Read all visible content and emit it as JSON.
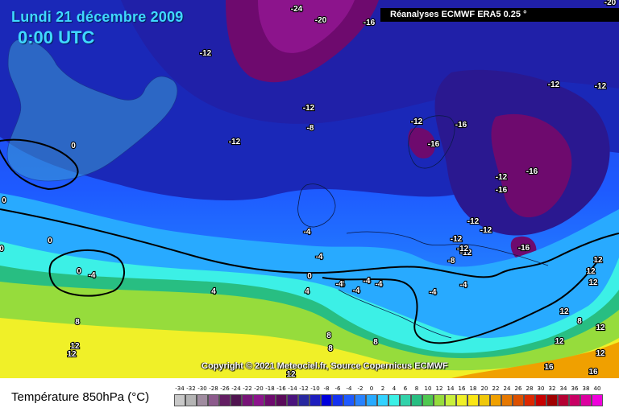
{
  "header": {
    "date": "Lundi 21 décembre 2009",
    "time": "0:00 UTC",
    "source": "Réanalyses ECMWF ERA5 0.25 °"
  },
  "copyright": "Copyright © 2021 Meteociel.fr, Source Copernicus ECMWF",
  "legend": {
    "title": "Température 850hPa (°C)",
    "ticks": [
      "-34",
      "-32",
      "-30",
      "-28",
      "-26",
      "-24",
      "-22",
      "-20",
      "-18",
      "-16",
      "-14",
      "-12",
      "-10",
      "-8",
      "-6",
      "-4",
      "-2",
      "0",
      "2",
      "4",
      "6",
      "8",
      "10",
      "12",
      "14",
      "16",
      "18",
      "20",
      "22",
      "24",
      "26",
      "28",
      "30",
      "32",
      "34",
      "36",
      "38",
      "40"
    ],
    "colors": [
      "#c8c8c8",
      "#b4b4b4",
      "#a08ca0",
      "#8c5a8c",
      "#641e64",
      "#501450",
      "#781478",
      "#8c148c",
      "#6e0a6e",
      "#5a0a5a",
      "#4b147d",
      "#2828a0",
      "#1e1ebe",
      "#0000dc",
      "#1432f0",
      "#1e5aff",
      "#2882ff",
      "#28aaff",
      "#32d2ff",
      "#3cf0e6",
      "#32d2aa",
      "#28be82",
      "#50c850",
      "#96dc3c",
      "#c8f03c",
      "#f0f028",
      "#fae614",
      "#f0c80a",
      "#f0a000",
      "#e67800",
      "#dc5000",
      "#dc2800",
      "#c80000",
      "#a00000",
      "#b40032",
      "#c80064",
      "#dc00a0",
      "#f000dc"
    ]
  },
  "contour_labels": [
    {
      "id": "l1",
      "text": "-24"
    },
    {
      "id": "l2",
      "text": "-20"
    },
    {
      "id": "l3",
      "text": "-16"
    },
    {
      "id": "l4",
      "text": "-20"
    },
    {
      "id": "l5",
      "text": "-12"
    },
    {
      "id": "l6",
      "text": "-12"
    },
    {
      "id": "l7",
      "text": "-8"
    },
    {
      "id": "l8",
      "text": "-12"
    },
    {
      "id": "l9",
      "text": "0"
    },
    {
      "id": "l10",
      "text": "-12"
    },
    {
      "id": "l11",
      "text": "-16"
    },
    {
      "id": "l12",
      "text": "-16"
    },
    {
      "id": "l13",
      "text": "-12"
    },
    {
      "id": "l14",
      "text": "-12"
    },
    {
      "id": "l15",
      "text": "-16"
    },
    {
      "id": "l16",
      "text": "-12"
    },
    {
      "id": "l17",
      "text": "-16"
    },
    {
      "id": "l18",
      "text": "-12"
    },
    {
      "id": "l19",
      "text": "-12"
    },
    {
      "id": "l20",
      "text": "-16"
    },
    {
      "id": "l21",
      "text": "-4"
    },
    {
      "id": "l22",
      "text": "-4"
    },
    {
      "id": "l23",
      "text": "-12"
    },
    {
      "id": "l24",
      "text": "-8"
    },
    {
      "id": "l25",
      "text": "0"
    },
    {
      "id": "l26",
      "text": "-4"
    },
    {
      "id": "l27",
      "text": "0"
    },
    {
      "id": "l28",
      "text": "-4"
    },
    {
      "id": "l29",
      "text": "-4"
    },
    {
      "id": "l30",
      "text": "-4"
    },
    {
      "id": "l31",
      "text": "-4"
    },
    {
      "id": "l32",
      "text": "-4"
    },
    {
      "id": "l33",
      "text": "-4"
    },
    {
      "id": "l34",
      "text": "-4"
    },
    {
      "id": "l35",
      "text": "4"
    },
    {
      "id": "l36",
      "text": "4"
    },
    {
      "id": "l37",
      "text": "0"
    },
    {
      "id": "l38",
      "text": "0"
    },
    {
      "id": "l39",
      "text": "0"
    },
    {
      "id": "l40",
      "text": "8"
    },
    {
      "id": "l41",
      "text": "12"
    },
    {
      "id": "l42",
      "text": "12"
    },
    {
      "id": "l43",
      "text": "8"
    },
    {
      "id": "l44",
      "text": "12"
    },
    {
      "id": "l45",
      "text": "12"
    },
    {
      "id": "l46",
      "text": "8"
    },
    {
      "id": "l47",
      "text": "12"
    },
    {
      "id": "l48",
      "text": "12"
    },
    {
      "id": "l49",
      "text": "12"
    },
    {
      "id": "l50",
      "text": "16"
    },
    {
      "id": "l51",
      "text": "16"
    },
    {
      "id": "l52",
      "text": "12"
    },
    {
      "id": "l53",
      "text": "12"
    },
    {
      "id": "l54",
      "text": "8"
    },
    {
      "id": "l55",
      "text": "8"
    },
    {
      "id": "l56",
      "text": "12"
    },
    {
      "id": "l57",
      "text": "-12"
    },
    {
      "id": "l58",
      "text": "-12"
    }
  ]
}
